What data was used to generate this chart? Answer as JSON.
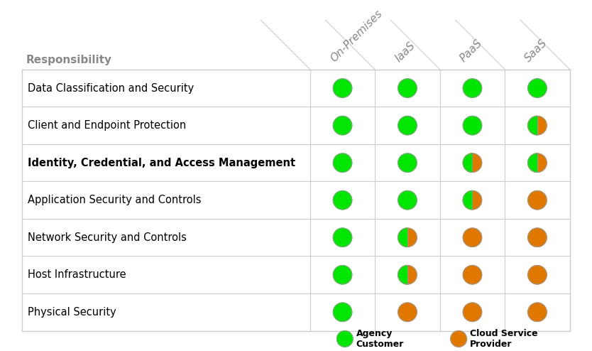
{
  "columns": [
    "On-Premises",
    "IaaS",
    "PaaS",
    "SaaS"
  ],
  "rows": [
    "Data Classification and Security",
    "Client and Endpoint Protection",
    "Identity, Credential, and Access Management",
    "Application Security and Controls",
    "Network Security and Controls",
    "Host Infrastructure",
    "Physical Security"
  ],
  "bold_rows": [
    2
  ],
  "header_label": "Responsibility",
  "agency_color": "#00e600",
  "provider_color": "#e07800",
  "circle_edge_color": "#999999",
  "legend_agency": "Agency\nCustomer",
  "legend_provider": "Cloud Service\nProvider",
  "cell_types": [
    [
      "G",
      "G",
      "G",
      "G"
    ],
    [
      "G",
      "G",
      "G",
      "H"
    ],
    [
      "G",
      "G",
      "H",
      "H"
    ],
    [
      "G",
      "G",
      "H",
      "O"
    ],
    [
      "G",
      "H",
      "O",
      "O"
    ],
    [
      "G",
      "H",
      "O",
      "O"
    ],
    [
      "G",
      "O",
      "O",
      "O"
    ]
  ],
  "background_color": "#ffffff",
  "header_color": "#888888",
  "grid_color": "#cccccc",
  "header_fontsize": 11,
  "row_fontsize": 10.5,
  "col_header_fontsize": 11
}
